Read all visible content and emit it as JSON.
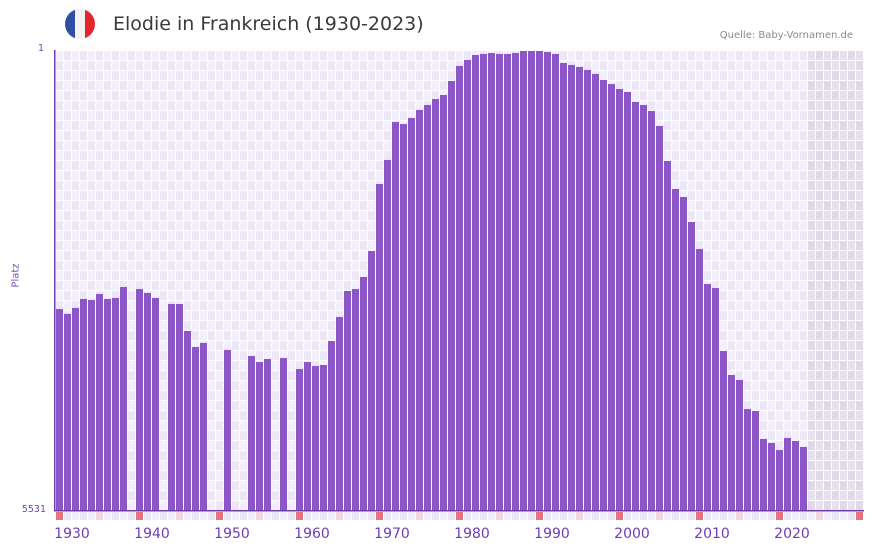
{
  "header": {
    "title": "Elodie in Frankreich (1930-2023)",
    "source": "Quelle: Baby-Vornamen.de",
    "flag_colors": [
      "#2f4fa0",
      "#f2f2f2",
      "#e3262d"
    ]
  },
  "axis": {
    "y_label": "Platz",
    "y_top_tick": "1",
    "y_bottom_tick": "5531",
    "x_ticks": [
      "1930",
      "1940",
      "1950",
      "1960",
      "1970",
      "1980",
      "1990",
      "2000",
      "2010",
      "2020"
    ]
  },
  "colors": {
    "bar": "#8c55c8",
    "axis": "#6a3ca8",
    "grid_a": "#f2eefb",
    "grid_b": "#ece6f7",
    "future_a": "#e6e1ef",
    "future_b": "#dfd9ea",
    "decade_marker": "#e5737a",
    "half_decade_marker": "#f5d6de",
    "other_marker_a": "#f1edf9",
    "other_marker_b": "#ebe5f6"
  },
  "chart_data": {
    "type": "bar",
    "title": "Elodie in Frankreich (1930-2023)",
    "xlabel": "",
    "ylabel": "Platz",
    "y_inverted": true,
    "ylim": [
      1,
      5531
    ],
    "x_range": [
      1930,
      2030
    ],
    "grid": true,
    "legend": null,
    "categories": [
      1930,
      1931,
      1932,
      1933,
      1934,
      1935,
      1936,
      1937,
      1938,
      1939,
      1940,
      1941,
      1942,
      1943,
      1944,
      1945,
      1946,
      1947,
      1948,
      1949,
      1950,
      1951,
      1952,
      1953,
      1954,
      1955,
      1956,
      1957,
      1958,
      1959,
      1960,
      1961,
      1962,
      1963,
      1964,
      1965,
      1966,
      1967,
      1968,
      1969,
      1970,
      1971,
      1972,
      1973,
      1974,
      1975,
      1976,
      1977,
      1978,
      1979,
      1980,
      1981,
      1982,
      1983,
      1984,
      1985,
      1986,
      1987,
      1988,
      1989,
      1990,
      1991,
      1992,
      1993,
      1994,
      1995,
      1996,
      1997,
      1998,
      1999,
      2000,
      2001,
      2002,
      2003,
      2004,
      2005,
      2006,
      2007,
      2008,
      2009,
      2010,
      2011,
      2012,
      2013,
      2014,
      2015,
      2016,
      2017,
      2018,
      2019,
      2020,
      2021,
      2022,
      2023
    ],
    "values": [
      3115,
      3174,
      3102,
      2994,
      3006,
      2934,
      2994,
      2982,
      2850,
      null,
      2874,
      2922,
      2982,
      null,
      3054,
      3054,
      3379,
      3571,
      3523,
      null,
      null,
      3607,
      null,
      null,
      3680,
      3752,
      3716,
      null,
      3704,
      null,
      3836,
      3752,
      3800,
      3788,
      3499,
      3211,
      2898,
      2874,
      2730,
      2417,
      1612,
      1323,
      867,
      891,
      818,
      722,
      662,
      590,
      542,
      374,
      193,
      121,
      61,
      49,
      37,
      49,
      49,
      37,
      13,
      13,
      13,
      25,
      49,
      157,
      181,
      205,
      241,
      289,
      362,
      410,
      470,
      506,
      626,
      662,
      734,
      915,
      1335,
      1672,
      1768,
      2069,
      2393,
      2814,
      2862,
      3619,
      3908,
      3968,
      4317,
      4341,
      4677,
      4725,
      4810,
      4665,
      4701,
      4773
    ]
  }
}
